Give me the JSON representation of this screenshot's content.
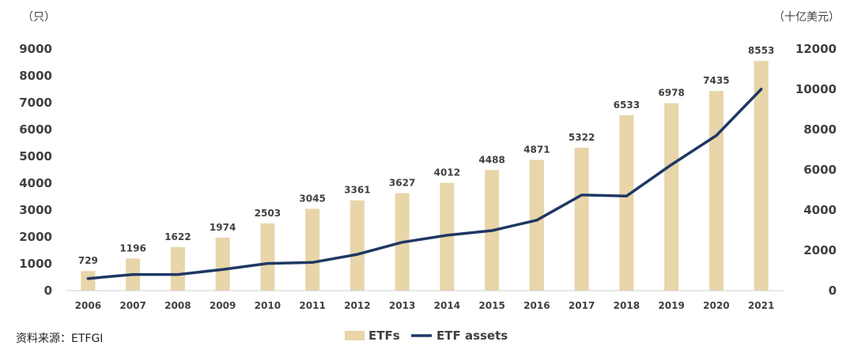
{
  "chart_data": {
    "type": "bar",
    "categories": [
      "2006",
      "2007",
      "2008",
      "2009",
      "2010",
      "2011",
      "2012",
      "2013",
      "2014",
      "2015",
      "2016",
      "2017",
      "2018",
      "2019",
      "2020",
      "2021"
    ],
    "series": [
      {
        "name": "ETFs",
        "type": "bar",
        "axis": "left",
        "values": [
          729,
          1196,
          1622,
          1974,
          2503,
          3045,
          3361,
          3627,
          4012,
          4488,
          4871,
          5322,
          6533,
          6978,
          7435,
          8553
        ],
        "color": "#E8D5A9"
      },
      {
        "name": "ETF assets",
        "type": "line",
        "axis": "right",
        "values": [
          600,
          800,
          800,
          1050,
          1350,
          1400,
          1800,
          2400,
          2750,
          2980,
          3500,
          4750,
          4700,
          6250,
          7700,
          10000
        ],
        "color": "#1F3864"
      }
    ],
    "y_left": {
      "unit": "（只）",
      "ylim": [
        0,
        9000
      ],
      "ticks": [
        0,
        1000,
        2000,
        3000,
        4000,
        5000,
        6000,
        7000,
        8000,
        9000
      ]
    },
    "y_right": {
      "unit": "（十亿美元）",
      "ylim": [
        0,
        12000
      ],
      "ticks": [
        0,
        2000,
        4000,
        6000,
        8000,
        10000,
        12000
      ]
    },
    "legend_position": "bottom-center",
    "grid": false
  },
  "source_text": "资料来源：ETFGI"
}
